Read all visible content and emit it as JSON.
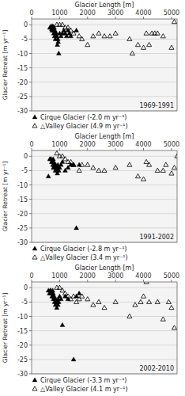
{
  "chart_data": [
    {
      "type": "scatter",
      "annotations": [
        "1969-1991"
      ],
      "xlabel": "Glacier Length [m]",
      "ylabel": "Glacier Retreat [m yr⁻¹]",
      "xlim": [
        0,
        5200
      ],
      "ylim": [
        -30,
        2
      ],
      "xticks": [
        0,
        1000,
        2000,
        3000,
        4000,
        5000
      ],
      "yticks": [
        0,
        -5,
        -10,
        -15,
        -20,
        -25,
        -30
      ],
      "grid": "y",
      "legend": "bottom",
      "series": [
        {
          "name": "Cirque Glacier (-2.0 m yr⁻¹)",
          "color": "#000000",
          "marker": "triangle",
          "x": [
            650,
            680,
            700,
            720,
            730,
            750,
            760,
            770,
            780,
            790,
            800,
            820,
            830,
            850,
            860,
            880,
            900,
            920,
            940,
            950,
            970,
            1000,
            1050,
            1100,
            1150,
            1200,
            1250,
            1300,
            1350,
            1400,
            1600
          ],
          "values": [
            -1,
            -1,
            -0.5,
            -1.5,
            -2,
            -1,
            -0.5,
            -2,
            -1,
            -3,
            -2,
            -4,
            -2,
            -5,
            -3,
            -3,
            -4,
            -7,
            -5,
            -6,
            -10,
            -3,
            -4,
            -3,
            -2,
            -3,
            -4,
            -2,
            -3,
            -4,
            -2
          ]
        },
        {
          "name": "△Valley Glacier (4.9 m yr⁻¹)",
          "color": "#000000",
          "marker": "open-triangle",
          "x": [
            800,
            900,
            1000,
            1100,
            1200,
            1300,
            1400,
            1500,
            1700,
            1800,
            2000,
            2200,
            2400,
            2600,
            2800,
            3000,
            3500,
            3600,
            3800,
            4000,
            4100,
            4200,
            4300,
            4400,
            4500,
            4700,
            5000,
            5100
          ],
          "values": [
            -1,
            0,
            0,
            0,
            -1,
            -1,
            -2,
            -3,
            -4,
            -5,
            -7,
            -4,
            -3,
            -4,
            -4,
            -3,
            -5,
            -10,
            -7,
            -8,
            -3,
            -7,
            -3,
            -3,
            -3,
            -4,
            -8,
            1
          ]
        }
      ]
    },
    {
      "type": "scatter",
      "annotations": [
        "1991-2002"
      ],
      "xlabel": "Glacier Length [m]",
      "ylabel": "Glacier Retreat [m yr⁻¹]",
      "xlim": [
        0,
        5200
      ],
      "ylim": [
        -30,
        2
      ],
      "xticks": [
        0,
        1000,
        2000,
        3000,
        4000,
        5000
      ],
      "yticks": [
        0,
        -5,
        -10,
        -15,
        -20,
        -25,
        -30
      ],
      "grid": "y",
      "legend": "bottom",
      "series": [
        {
          "name": "Cirque Glacier (-2.8 m yr⁻¹)",
          "color": "#000000",
          "marker": "triangle",
          "x": [
            600,
            650,
            680,
            700,
            720,
            730,
            750,
            760,
            770,
            780,
            790,
            800,
            820,
            830,
            850,
            860,
            880,
            900,
            920,
            940,
            950,
            970,
            1000,
            1050,
            1100,
            1200,
            1300,
            1400,
            1500,
            1600,
            1700
          ],
          "values": [
            -7,
            -1,
            -1,
            -1,
            -2,
            -2,
            -1.5,
            -3,
            -1,
            -4,
            -2,
            -3,
            -4,
            -3,
            -5,
            -3,
            -4,
            -5,
            -6,
            -3,
            -4,
            -5,
            -4,
            -3,
            -2,
            -5,
            -4,
            -3,
            -3,
            -25,
            -3
          ]
        },
        {
          "name": "△Valley Glacier (3.4 m yr⁻¹)",
          "color": "#000000",
          "marker": "open-triangle",
          "x": [
            900,
            1000,
            1100,
            1200,
            1300,
            1400,
            1500,
            1700,
            1800,
            2000,
            2200,
            2400,
            2600,
            3000,
            3500,
            3800,
            4000,
            4100,
            4200,
            4500,
            4700,
            4800,
            5000,
            5100,
            5200
          ],
          "values": [
            1,
            0,
            0,
            -1,
            -2,
            -2,
            -3,
            -5,
            -3,
            -3,
            -4,
            -5,
            -5,
            -4,
            -3,
            -7,
            -8,
            -2,
            -3,
            -5,
            -5,
            -3,
            -6,
            -4,
            0
          ]
        }
      ]
    },
    {
      "type": "scatter",
      "annotations": [
        "2002-2010"
      ],
      "xlabel": "Glacier Length [m]",
      "ylabel": "Glacier Retreat [m yr⁻¹]",
      "xlim": [
        0,
        5200
      ],
      "ylim": [
        -30,
        2
      ],
      "xticks": [
        0,
        1000,
        2000,
        3000,
        4000,
        5000
      ],
      "yticks": [
        0,
        -5,
        -10,
        -15,
        -20,
        -25,
        -30
      ],
      "grid": "y",
      "legend": "bottom",
      "series": [
        {
          "name": "Cirque Glacier (-3.3 m yr⁻¹)",
          "color": "#000000",
          "marker": "triangle",
          "x": [
            600,
            640,
            660,
            680,
            700,
            720,
            730,
            750,
            760,
            770,
            780,
            790,
            800,
            820,
            830,
            850,
            860,
            880,
            900,
            920,
            940,
            950,
            970,
            1000,
            1050,
            1100,
            1200,
            1300,
            1500,
            1600,
            1700
          ],
          "values": [
            -1,
            -2,
            -1,
            -1,
            -2,
            -2,
            -3,
            -1,
            -3,
            -2,
            -4,
            -3,
            -3,
            -5,
            -4,
            -6,
            -4,
            -5,
            -7,
            -5,
            -6,
            -4,
            -5,
            -3,
            -4,
            -13,
            -3,
            -4,
            -25,
            -3,
            -2
          ]
        },
        {
          "name": "△Valley Glacier (4.1 m yr⁻¹)",
          "color": "#000000",
          "marker": "open-triangle",
          "x": [
            900,
            1000,
            1100,
            1200,
            1300,
            1400,
            1500,
            1600,
            1700,
            1800,
            2000,
            2200,
            2400,
            2600,
            3000,
            3500,
            3700,
            3900,
            4000,
            4100,
            4200,
            4500,
            4700,
            4900,
            5000,
            5100
          ],
          "values": [
            0,
            0,
            -1,
            -2,
            -3,
            -4,
            -3,
            -5,
            -4,
            -3,
            -4,
            -6,
            -5,
            -7,
            -5,
            -10,
            -6,
            -5,
            -3,
            2,
            -5,
            -5,
            -11,
            -5,
            -7,
            -14
          ]
        }
      ]
    }
  ]
}
